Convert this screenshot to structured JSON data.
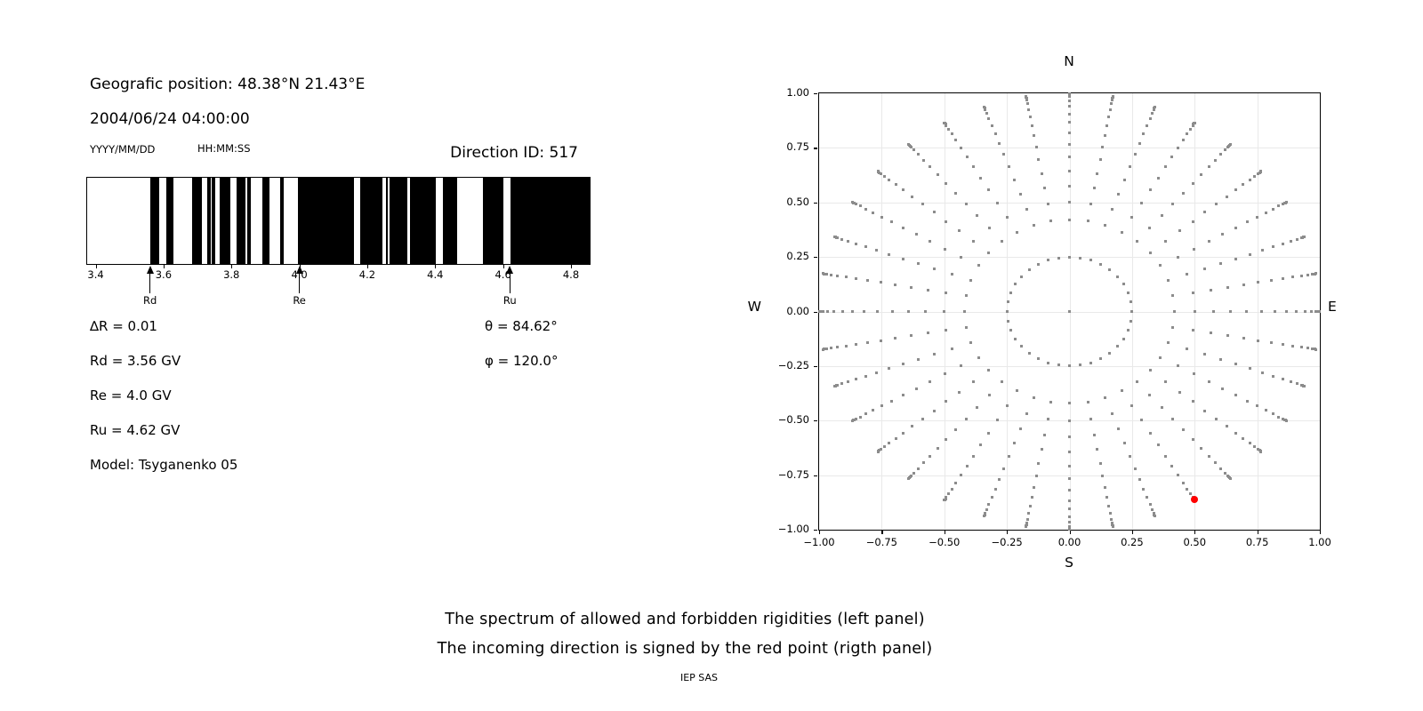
{
  "info_panel": {
    "geographic_position": "Geografic position: 48.38°N 21.43°E",
    "datetime": "2004/06/24 04:00:00",
    "date_format_label": "YYYY/MM/DD",
    "time_format_label": "HH:MM:SS",
    "direction_id": "Direction ID: 517",
    "params": {
      "delta_r": "∆R = 0.01",
      "rd": "Rd = 3.56 GV",
      "re": "Re = 4.0 GV",
      "ru": "Ru = 4.62 GV",
      "model": "Model: Tsyganenko 05",
      "theta": "θ = 84.62°",
      "phi": "φ = 120.0°"
    }
  },
  "caption": {
    "line1": "The spectrum of allowed and forbidden rigidities (left panel)",
    "line2": "The incoming direction is signed by the red point (rigth panel)",
    "credit": "IEP SAS"
  },
  "chart_data": [
    {
      "type": "bar",
      "subtype": "rigidity-barcode-spectrum",
      "description": "Allowed (white) and forbidden (black) rigidity spectrum",
      "xlim": [
        3.375,
        4.855
      ],
      "xticks": [
        3.4,
        3.6,
        3.8,
        4.0,
        4.2,
        4.4,
        4.6,
        4.8
      ],
      "bar_color_forbidden": "#000000",
      "bar_color_allowed": "#ffffff",
      "forbidden_intervals_gv": [
        [
          3.56,
          3.586
        ],
        [
          3.609,
          3.628
        ],
        [
          3.683,
          3.712
        ],
        [
          3.728,
          3.739
        ],
        [
          3.743,
          3.751
        ],
        [
          3.766,
          3.798
        ],
        [
          3.814,
          3.84
        ],
        [
          3.847,
          3.858
        ],
        [
          3.892,
          3.911
        ],
        [
          3.943,
          3.953
        ],
        [
          3.995,
          4.162
        ],
        [
          4.179,
          4.245
        ],
        [
          4.254,
          4.26
        ],
        [
          4.266,
          4.318
        ],
        [
          4.327,
          4.401
        ],
        [
          4.423,
          4.466
        ],
        [
          4.54,
          4.601
        ],
        [
          4.622,
          4.855
        ]
      ],
      "markers": [
        {
          "label": "Rd",
          "x": 3.56
        },
        {
          "label": "Re",
          "x": 4.0
        },
        {
          "label": "Ru",
          "x": 4.62
        }
      ]
    },
    {
      "type": "scatter",
      "subtype": "incoming-direction-sky-plot",
      "compass": {
        "top": "N",
        "bottom": "S",
        "left": "W",
        "right": "E"
      },
      "xlim": [
        -1,
        1
      ],
      "ylim": [
        -1,
        1
      ],
      "xticks": [
        -1.0,
        -0.75,
        -0.5,
        -0.25,
        0.0,
        0.25,
        0.5,
        0.75,
        1.0
      ],
      "yticks": [
        -1.0,
        -0.75,
        -0.5,
        -0.25,
        0.0,
        0.25,
        0.5,
        0.75,
        1.0
      ],
      "grid": true,
      "grid_color": "#e9e9e9",
      "dot_color": "#8c8c8c",
      "spokes": {
        "azimuth_start_deg": 0,
        "azimuth_step_deg": 10,
        "count": 36,
        "radii": [
          0.25,
          0.42,
          0.5,
          0.574,
          0.643,
          0.707,
          0.766,
          0.819,
          0.866,
          0.906,
          0.94,
          0.966,
          0.985,
          0.991,
          0.996,
          0.999
        ]
      },
      "center_dot": {
        "x": 0,
        "y": 0
      },
      "red_point": {
        "azimuth_deg": 150,
        "radius": 0.996,
        "x": 0.498,
        "y": -0.863,
        "color": "#ff0000"
      }
    }
  ]
}
